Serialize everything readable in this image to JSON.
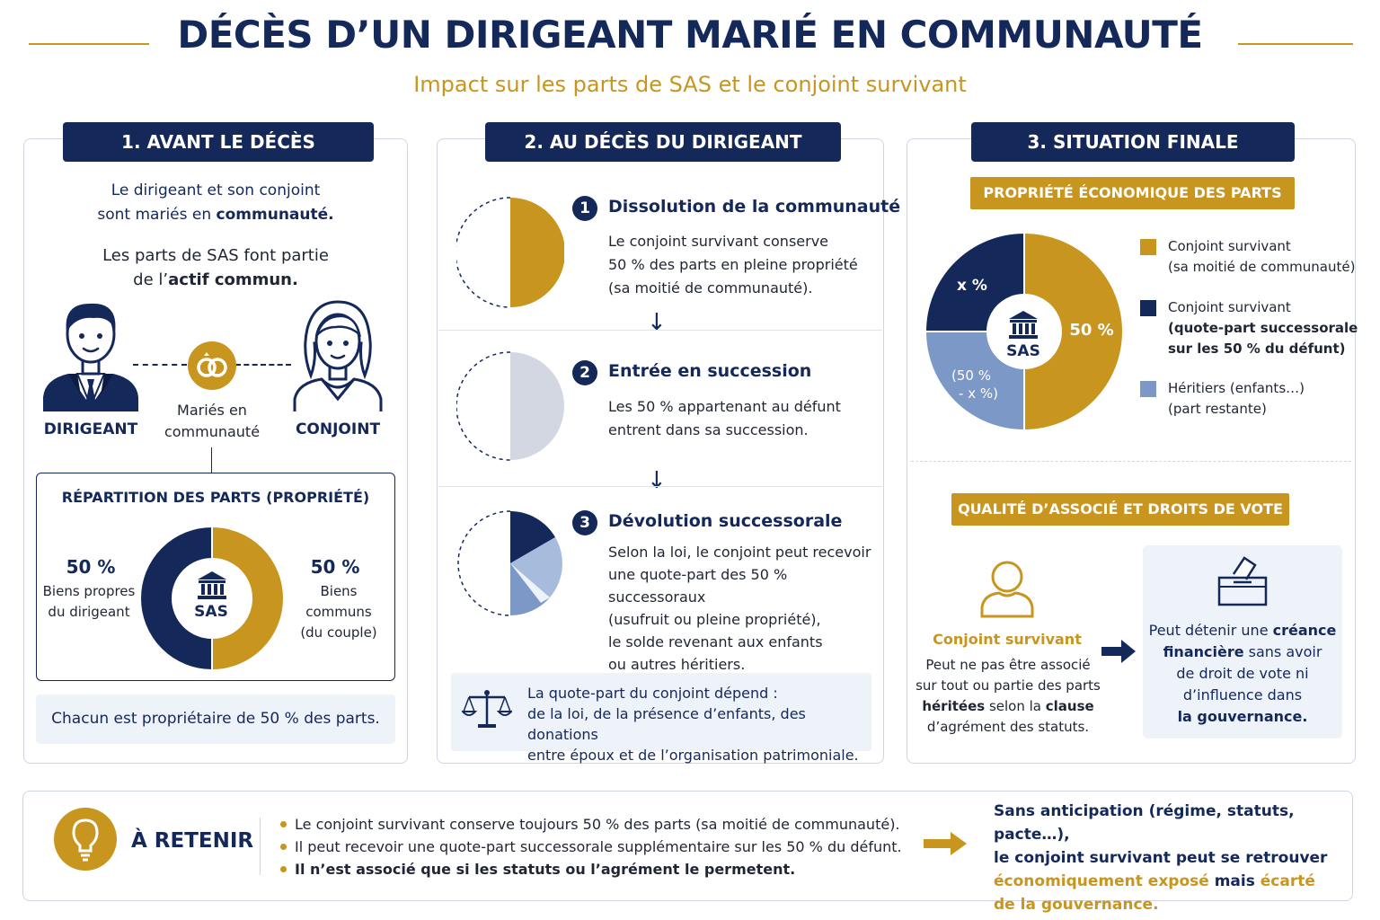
{
  "header": {
    "title": "DÉCÈS D’UN DIRIGEANT MARIÉ EN COMMUNAUTÉ",
    "subtitle": "Impact sur les parts de SAS et le conjoint survivant"
  },
  "colors": {
    "navy": "#14285a",
    "gold": "#c8951f",
    "light_blue": "#7b98c6",
    "grey": "#d2d7e2",
    "panel_bg": "#eef2f9"
  },
  "col1": {
    "heading": "1. AVANT LE DÉCÈS",
    "intro_line1": "Le dirigeant et son conjoint",
    "intro_line2_a": "sont mariés en ",
    "intro_line2_b": "communauté.",
    "parts_line1": "Les parts de SAS font partie",
    "parts_line2_a": "de l’",
    "parts_line2_b": "actif commun.",
    "dirigeant_label": "DIRIGEANT",
    "conjoint_label": "CONJOINT",
    "maries_line1": "Mariés en",
    "maries_line2": "communauté",
    "icons": {
      "dirigeant": "man-in-suit-icon",
      "conjoint": "woman-icon",
      "rings": "wedding-rings-icon",
      "sas": "bank-building-icon"
    },
    "repartition": {
      "title": "RÉPARTITION DES PARTS (PROPRIÉTÉ)",
      "left_pct": "50 %",
      "left_line1": "Biens propres",
      "left_line2": "du dirigeant",
      "right_pct": "50 %",
      "right_line1": "Biens communs",
      "right_line2": "(du couple)",
      "center_label": "SAS",
      "slices": [
        {
          "label": "Biens propres du dirigeant",
          "value": 50,
          "color": "#14285a"
        },
        {
          "label": "Biens communs",
          "value": 50,
          "color": "#c8951f"
        }
      ]
    },
    "footer": "Chacun est propriétaire de 50 % des parts."
  },
  "col2": {
    "heading": "2. AU DÉCÈS DU DIRIGEANT",
    "steps": [
      {
        "num": "1",
        "title": "Dissolution de la communauté",
        "lines": [
          "Le conjoint survivant conserve",
          "50 % des parts en pleine propriété",
          "(sa moitié de communauté)."
        ]
      },
      {
        "num": "2",
        "title": "Entrée en succession",
        "lines": [
          "Les 50 % appartenant au défunt",
          "entrent dans sa succession."
        ]
      },
      {
        "num": "3",
        "title": "Dévolution successorale",
        "lines": [
          "Selon la loi, le conjoint peut recevoir",
          "une quote-part des 50 % successoraux",
          "(usufruit ou pleine propriété),",
          "le solde revenant aux enfants",
          "ou autres héritiers."
        ]
      }
    ],
    "arrow": "↓",
    "note_line1": "La quote-part du conjoint dépend :",
    "note_line2": "de la loi, de la présence d’enfants, des donations",
    "note_line3": "entre époux et de l’organisation patrimoniale.",
    "note_icon": "scales-of-justice-icon"
  },
  "col3": {
    "heading": "3. SITUATION FINALE",
    "tag1": "PROPRIÉTÉ ÉCONOMIQUE DES PARTS",
    "pie": {
      "center_label": "SAS",
      "label_gold": "50 %",
      "label_navy": "x %",
      "label_blue_1": "(50 %",
      "label_blue_2": "- x %)",
      "slices": [
        {
          "value": 50,
          "color": "#c8951f"
        },
        {
          "value": 25,
          "color": "#7b98c6"
        },
        {
          "value": 25,
          "color": "#14285a"
        }
      ]
    },
    "legend": [
      {
        "color": "#c8951f",
        "line1": "Conjoint survivant",
        "line2": "(sa moitié de communauté)",
        "bold_line2": false
      },
      {
        "color": "#14285a",
        "line1": "Conjoint survivant",
        "line2": "(quote-part successorale",
        "line3": "sur les 50 % du défunt)",
        "bold_line2": true
      },
      {
        "color": "#7b98c6",
        "line1": "Héritiers (enfants…)",
        "line2": "(part restante)",
        "bold_line2": false
      }
    ],
    "tag2": "QUALITÉ D’ASSOCIÉ ET DROITS DE VOTE",
    "person_icon": "person-outline-icon",
    "ballot_icon": "ballot-box-icon",
    "conj_title": "Conjoint survivant",
    "conj_line1": "Peut ne pas être associé",
    "conj_line2": "sur tout ou partie des parts",
    "conj_line3_bold": "héritées",
    "conj_line3_rest": " selon la ",
    "conj_line3_bold2": "clause",
    "conj_line4": "d’agrément des statuts.",
    "creance_line1_a": "Peut détenir une ",
    "creance_line1_b": "créance",
    "creance_line2_a": "financière",
    "creance_line2_b": " sans avoir",
    "creance_line3": "de droit de vote ni",
    "creance_line4": "d’influence dans",
    "creance_line5": "la gouvernance."
  },
  "retenir": {
    "icon": "lightbulb-icon",
    "title": "À RETENIR",
    "items": [
      "Le conjoint survivant conserve toujours 50 % des parts (sa moitié de communauté).",
      "Il peut recevoir une quote-part successorale supplémentaire sur les 50 % du défunt.",
      "Il n’est associé que si les statuts ou l’agrément le permetent."
    ],
    "conclusion_line1": "Sans anticipation (régime, statuts, pacte…),",
    "conclusion_line2": "le conjoint survivant peut se retrouver",
    "conclusion_line3_gold": "économiquement exposé",
    "conclusion_line3_rest": " mais ",
    "conclusion_line3_gold2": "écarté",
    "conclusion_line4": "de la gouvernance."
  }
}
